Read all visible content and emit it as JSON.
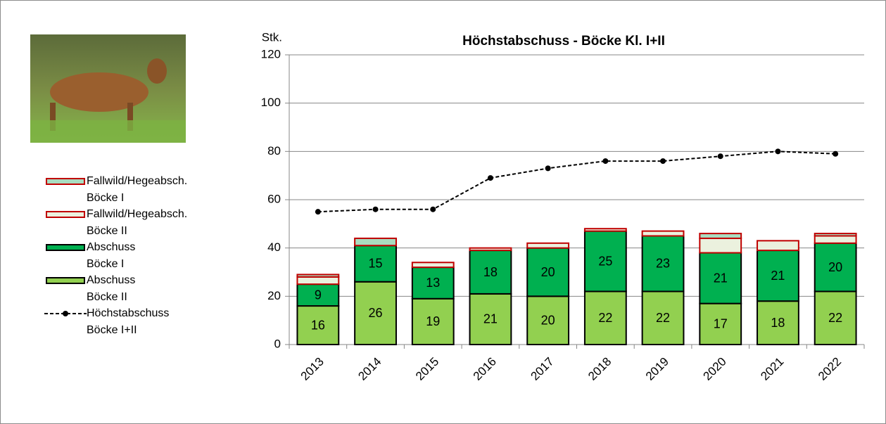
{
  "chart_data": {
    "type": "stacked_bar_line",
    "title": "Höchstabschuss - Böcke Kl. I+II",
    "y_label": "Stk.",
    "categories": [
      "2013",
      "2014",
      "2015",
      "2016",
      "2017",
      "2018",
      "2019",
      "2020",
      "2021",
      "2022"
    ],
    "series": [
      {
        "name": "Abschuss\nBöcke II",
        "kind": "bar",
        "color": "#92d050",
        "border": "#000000",
        "labels": true,
        "values": [
          16,
          26,
          19,
          21,
          20,
          22,
          22,
          17,
          18,
          22
        ]
      },
      {
        "name": "Abschuss\nBöcke I",
        "kind": "bar",
        "color": "#00b050",
        "border": "#000000",
        "labels": true,
        "values": [
          9,
          15,
          13,
          18,
          20,
          25,
          23,
          21,
          21,
          20
        ]
      },
      {
        "name": "Fallwild/Hegeabsch.\nBöcke II",
        "kind": "bar",
        "color": "#ebf1de",
        "border": "#c00000",
        "labels": false,
        "values": [
          3,
          0,
          2,
          1,
          2,
          1,
          2,
          6,
          4,
          3
        ]
      },
      {
        "name": "Fallwild/Hegeabsch.\nBöcke I",
        "kind": "bar",
        "color": "#a9dcc0",
        "border": "#c00000",
        "labels": false,
        "values": [
          1,
          3,
          0,
          0,
          0,
          0,
          0,
          2,
          0,
          1
        ]
      },
      {
        "name": "Höchstabschuss\nBöcke I+II",
        "kind": "line",
        "color": "#000000",
        "labels": false,
        "values": [
          55,
          56,
          56,
          69,
          73,
          76,
          76,
          78,
          80,
          79
        ]
      }
    ],
    "ylim": [
      0,
      120
    ],
    "yticks": [
      0,
      20,
      40,
      60,
      80,
      100,
      120
    ],
    "grid": true
  }
}
